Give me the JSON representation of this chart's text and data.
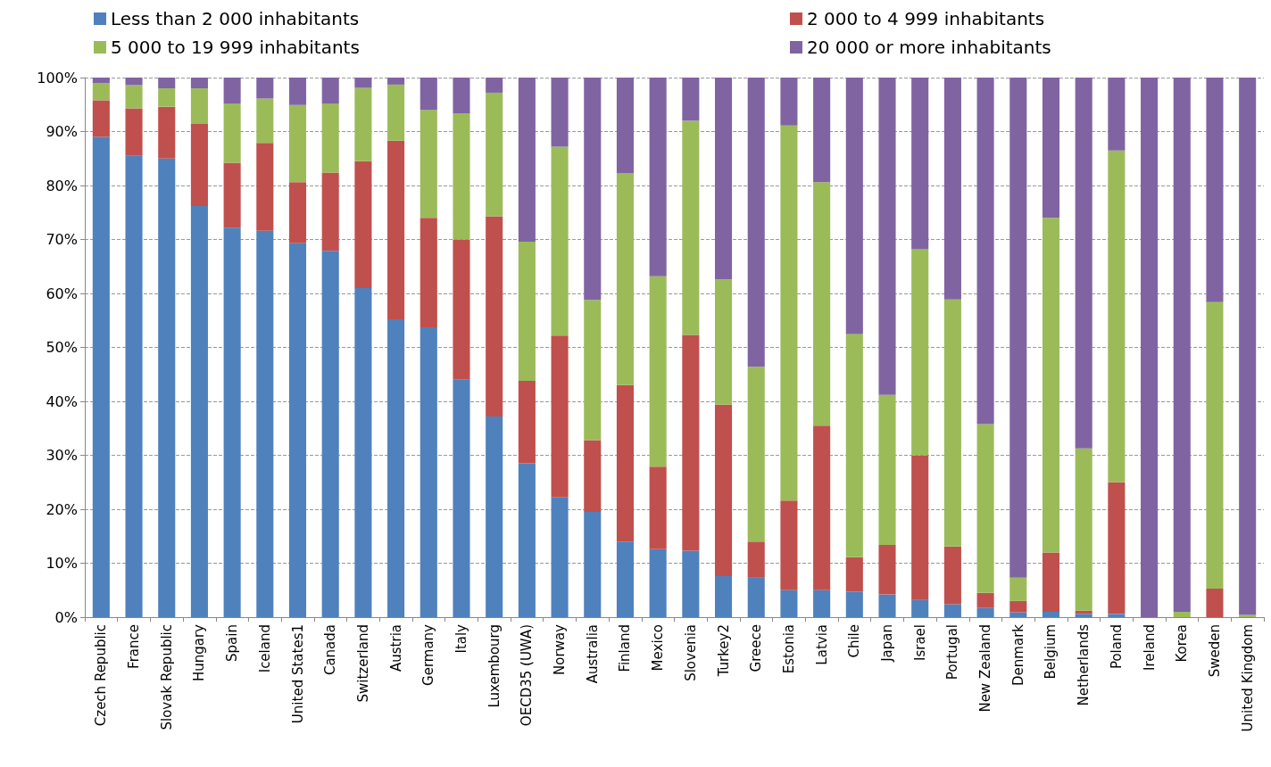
{
  "chart_data": {
    "type": "bar",
    "stacked": true,
    "legend": "top",
    "grid": "y",
    "categories": [
      "Czech Republic",
      "France",
      "Slovak Republic",
      "Hungary",
      "Spain",
      "Iceland",
      "United States1",
      "Canada",
      "Switzerland",
      "Austria",
      "Germany",
      "Italy",
      "Luxembourg",
      "OECD35 (UWA)",
      "Norway",
      "Australia",
      "Finland",
      "Mexico",
      "Slovenia",
      "Turkey2",
      "Greece",
      "Estonia",
      "Latvia",
      "Chile",
      "Japan",
      "Israel",
      "Portugal",
      "New Zealand",
      "Denmark",
      "Belgium",
      "Netherlands",
      "Poland",
      "Ireland",
      "Korea",
      "Sweden",
      "United Kingdom"
    ],
    "ylim": [
      0,
      100
    ],
    "yticks": [
      {
        "value": 0,
        "label": "0%"
      },
      {
        "value": 10,
        "label": "10%"
      },
      {
        "value": 20,
        "label": "20%"
      },
      {
        "value": 30,
        "label": "30%"
      },
      {
        "value": 40,
        "label": "40%"
      },
      {
        "value": 50,
        "label": "50%"
      },
      {
        "value": 60,
        "label": "60%"
      },
      {
        "value": 70,
        "label": "70%"
      },
      {
        "value": 80,
        "label": "80%"
      },
      {
        "value": 90,
        "label": "90%"
      },
      {
        "value": 100,
        "label": "100%"
      }
    ],
    "series": [
      {
        "name": "Less than 2 000 inhabitants",
        "color": "#4f81bd",
        "values": [
          89,
          85.5,
          85,
          76.2,
          72.2,
          71.6,
          69.3,
          67.9,
          61,
          55.2,
          53.7,
          44,
          37.2,
          28.5,
          22.2,
          19.5,
          14,
          12.6,
          12.3,
          7.6,
          7.3,
          5,
          5,
          4.7,
          4.2,
          3.2,
          2.4,
          1.7,
          0.9,
          1,
          0.6,
          0.6,
          0,
          0,
          0,
          0
        ]
      },
      {
        "name": "2 000 to 4 999 inhabitants",
        "color": "#c0504d",
        "values": [
          6.8,
          8.8,
          9.6,
          15.2,
          12,
          16.3,
          11.3,
          14.5,
          23.5,
          33.1,
          20.3,
          26,
          37.1,
          15.3,
          30,
          13.3,
          29,
          15.3,
          40,
          31.8,
          6.7,
          16.6,
          30.5,
          6.4,
          9.2,
          26.8,
          10.7,
          2.8,
          2.1,
          11,
          0.6,
          24.4,
          0,
          0,
          5.3,
          0
        ]
      },
      {
        "name": "5 000 to 19 999 inhabitants",
        "color": "#9bbb59",
        "values": [
          3.2,
          4.3,
          3.4,
          6.6,
          11,
          8.2,
          14.3,
          12.8,
          13.6,
          10.4,
          20,
          23.4,
          22.9,
          25.8,
          35,
          26,
          39.3,
          35.3,
          39.7,
          23.2,
          32.4,
          69.5,
          45.1,
          41.4,
          27.8,
          38.2,
          45.8,
          31.3,
          4.3,
          62,
          30.1,
          61.5,
          0,
          1,
          53.1,
          0.4
        ]
      },
      {
        "name": "20 000 or more inhabitants",
        "color": "#8064a2",
        "values": [
          1,
          1.4,
          2,
          2,
          4.8,
          3.9,
          5.1,
          4.8,
          1.9,
          1.3,
          6,
          6.6,
          2.8,
          30.4,
          12.8,
          41.2,
          17.7,
          36.8,
          8,
          37.4,
          53.6,
          8.9,
          19.4,
          47.5,
          58.8,
          31.8,
          41.1,
          64.2,
          92.7,
          26,
          68.7,
          13.5,
          100,
          99,
          41.6,
          99.6
        ]
      }
    ]
  }
}
